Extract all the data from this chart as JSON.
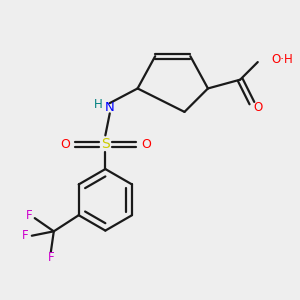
{
  "bg_color": "#eeeeee",
  "bond_color": "#1a1a1a",
  "colors": {
    "O": "#ff0000",
    "N": "#0000ff",
    "S": "#cccc00",
    "F": "#cc00cc",
    "H_N": "#008080",
    "C": "#1a1a1a"
  },
  "figsize": [
    3.0,
    3.0
  ],
  "dpi": 100
}
